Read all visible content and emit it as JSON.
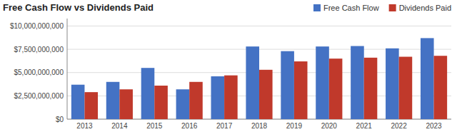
{
  "chart_data": {
    "type": "bar",
    "title": "Free Cash Flow vs Dividends Paid",
    "categories": [
      "2013",
      "2014",
      "2015",
      "2016",
      "2017",
      "2018",
      "2019",
      "2020",
      "2021",
      "2022",
      "2023"
    ],
    "series": [
      {
        "name": "Free Cash Flow",
        "color": "#4472C4",
        "values": [
          3700000000,
          4000000000,
          5500000000,
          3200000000,
          4600000000,
          7800000000,
          7300000000,
          7800000000,
          7850000000,
          7600000000,
          8700000000
        ]
      },
      {
        "name": "Dividends Paid",
        "color": "#C0392B",
        "values": [
          2900000000,
          3200000000,
          3600000000,
          4000000000,
          4700000000,
          5300000000,
          6200000000,
          6500000000,
          6600000000,
          6700000000,
          6800000000
        ]
      }
    ],
    "ylim": [
      0,
      10800000000
    ],
    "yticks": [
      {
        "value": 0,
        "label": "$0"
      },
      {
        "value": 2500000000,
        "label": "$2,500,000,000"
      },
      {
        "value": 5000000000,
        "label": "$5,000,000,000"
      },
      {
        "value": 7500000000,
        "label": "$7,500,000,000"
      },
      {
        "value": 10000000000,
        "label": "$10,000,000,000"
      }
    ],
    "grid": true,
    "legend": "upper right"
  }
}
